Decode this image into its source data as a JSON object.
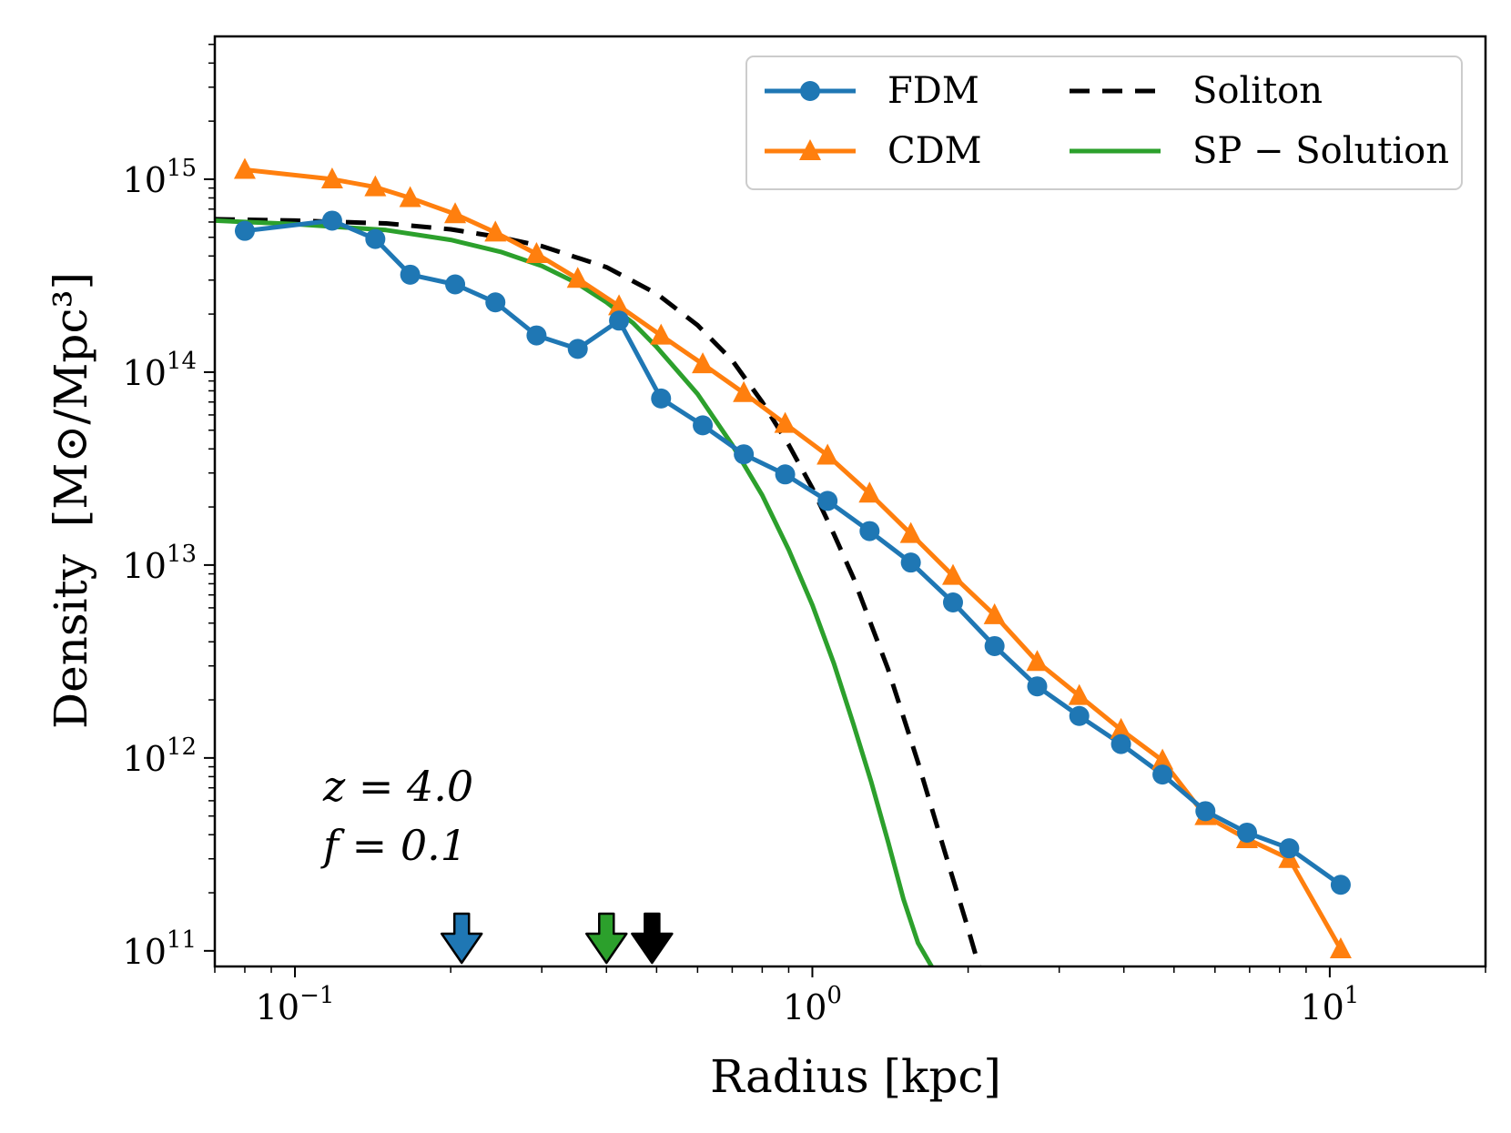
{
  "chart_data": {
    "type": "line",
    "xscale": "log",
    "yscale": "log",
    "xlabel": "Radius [kpc]",
    "ylabel_text": "Density",
    "ylabel_unit": "[M⊙/Mpc³]",
    "xlim": [
      0.07,
      20
    ],
    "ylim": [
      83000000000.0,
      5500000000000000.0
    ],
    "x_ticks": [
      {
        "value": 0.1,
        "base": "10",
        "exp": "−1"
      },
      {
        "value": 1,
        "base": "10",
        "exp": "0"
      },
      {
        "value": 10,
        "base": "10",
        "exp": "1"
      }
    ],
    "y_ticks": [
      {
        "value": 100000000000.0,
        "base": "10",
        "exp": "11"
      },
      {
        "value": 1000000000000.0,
        "base": "10",
        "exp": "12"
      },
      {
        "value": 10000000000000.0,
        "base": "10",
        "exp": "13"
      },
      {
        "value": 100000000000000.0,
        "base": "10",
        "exp": "14"
      },
      {
        "value": 1000000000000000.0,
        "base": "10",
        "exp": "15"
      }
    ],
    "series": [
      {
        "name": "FDM",
        "color": "#1f77b4",
        "marker": "circle",
        "style": "solid",
        "x": [
          0.08,
          0.118,
          0.143,
          0.167,
          0.204,
          0.244,
          0.293,
          0.352,
          0.423,
          0.51,
          0.614,
          0.737,
          0.886,
          1.07,
          1.29,
          1.55,
          1.87,
          2.25,
          2.72,
          3.28,
          3.95,
          4.75,
          5.75,
          6.92,
          8.35,
          10.5
        ],
        "y": [
          540000000000000.0,
          610000000000000.0,
          490000000000000.0,
          320000000000000.0,
          285000000000000.0,
          230000000000000.0,
          155000000000000.0,
          132000000000000.0,
          185000000000000.0,
          73000000000000.0,
          53000000000000.0,
          37500000000000.0,
          29500000000000.0,
          21500000000000.0,
          15000000000000.0,
          10300000000000.0,
          6400000000000.0,
          3800000000000.0,
          2350000000000.0,
          1650000000000.0,
          1180000000000.0,
          820000000000.0,
          530000000000.0,
          410000000000.0,
          340000000000.0,
          220000000000.0
        ]
      },
      {
        "name": "CDM",
        "color": "#ff7f0e",
        "marker": "triangle",
        "style": "solid",
        "x": [
          0.08,
          0.118,
          0.143,
          0.167,
          0.204,
          0.244,
          0.293,
          0.352,
          0.423,
          0.51,
          0.614,
          0.737,
          0.886,
          1.07,
          1.29,
          1.55,
          1.87,
          2.25,
          2.72,
          3.28,
          3.95,
          4.75,
          5.75,
          6.92,
          8.35,
          10.5
        ],
        "y": [
          1120000000000000.0,
          1000000000000000.0,
          910000000000000.0,
          800000000000000.0,
          660000000000000.0,
          530000000000000.0,
          410000000000000.0,
          305000000000000.0,
          220000000000000.0,
          155000000000000.0,
          110000000000000.0,
          78000000000000.0,
          54000000000000.0,
          37000000000000.0,
          23500000000000.0,
          14500000000000.0,
          8800000000000.0,
          5500000000000.0,
          3150000000000.0,
          2100000000000.0,
          1400000000000.0,
          970000000000.0,
          500000000000.0,
          380000000000.0,
          300000000000.0,
          102000000000.0
        ]
      },
      {
        "name": "Soliton",
        "color": "#000000",
        "marker": "none",
        "style": "dashed",
        "x": [
          0.07,
          0.1,
          0.15,
          0.2,
          0.25,
          0.3,
          0.4,
          0.5,
          0.6,
          0.7,
          0.8,
          0.9,
          1.0,
          1.1,
          1.2,
          1.4,
          1.6,
          1.8,
          2.0,
          2.1
        ],
        "y": [
          620000000000000.0,
          610000000000000.0,
          590000000000000.0,
          550000000000000.0,
          500000000000000.0,
          450000000000000.0,
          350000000000000.0,
          255000000000000.0,
          175000000000000.0,
          115000000000000.0,
          70000000000000.0,
          42000000000000.0,
          25000000000000.0,
          14500000000000.0,
          8600000000000.0,
          2900000000000.0,
          950000000000.0,
          330000000000.0,
          130000000000.0,
          83000000000.0
        ]
      },
      {
        "name": "SP − Solution",
        "color": "#2ca02c",
        "marker": "none",
        "style": "solid",
        "x": [
          0.07,
          0.1,
          0.15,
          0.2,
          0.25,
          0.3,
          0.35,
          0.4,
          0.45,
          0.5,
          0.6,
          0.7,
          0.8,
          0.9,
          1.0,
          1.1,
          1.2,
          1.3,
          1.4,
          1.5,
          1.6,
          1.7
        ],
        "y": [
          610000000000000.0,
          585000000000000.0,
          545000000000000.0,
          485000000000000.0,
          420000000000000.0,
          355000000000000.0,
          290000000000000.0,
          230000000000000.0,
          180000000000000.0,
          135000000000000.0,
          77000000000000.0,
          42000000000000.0,
          23000000000000.0,
          12000000000000.0,
          6200000000000.0,
          3100000000000.0,
          1500000000000.0,
          750000000000.0,
          370000000000.0,
          185000000000.0,
          110000000000.0,
          83000000000.0
        ]
      }
    ],
    "arrows": [
      {
        "x": 0.21,
        "color": "#1f77b4"
      },
      {
        "x": 0.4,
        "color": "#2ca02c"
      },
      {
        "x": 0.49,
        "color": "#000000"
      }
    ],
    "annotations": [
      "z = 4.0",
      "f = 0.1"
    ],
    "legend_position": "top-right"
  }
}
